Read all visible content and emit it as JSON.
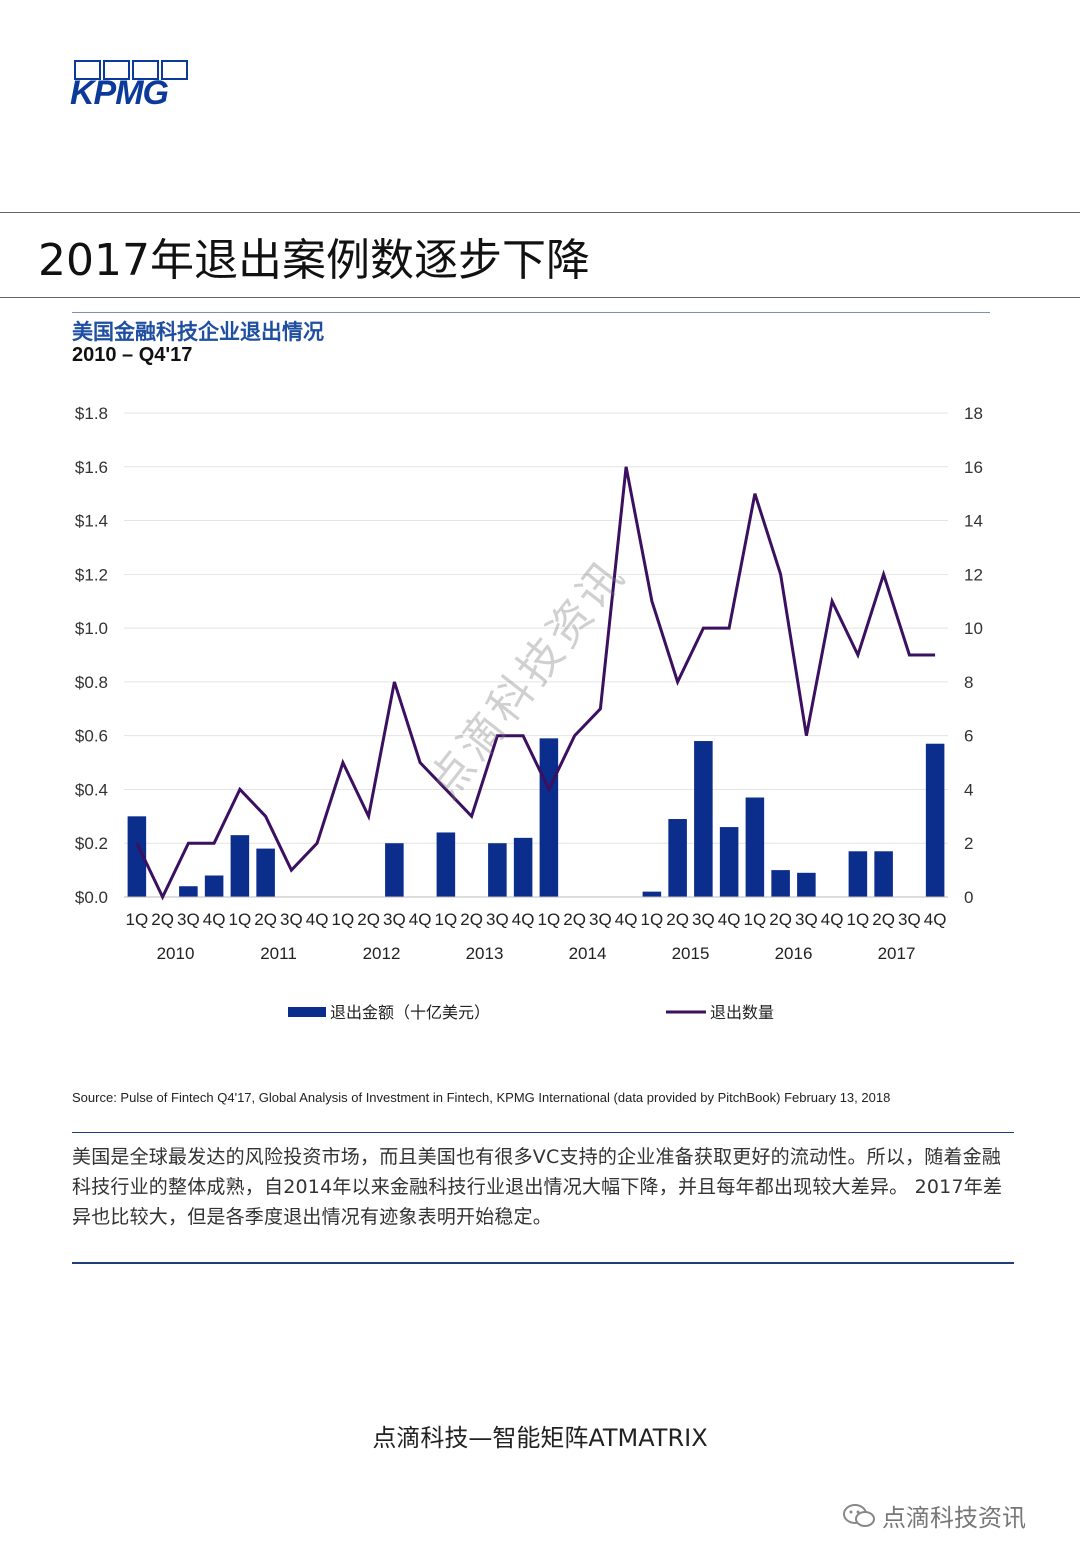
{
  "logo": {
    "text": "KPMG"
  },
  "page_title": "2017年退出案例数逐步下降",
  "chart_title": "美国金融科技企业退出情况",
  "chart_subtitle": "2010 – Q4'17",
  "watermark": "点滴科技资讯",
  "source": "Source: Pulse of Fintech Q4'17, Global Analysis of Investment in Fintech, KPMG International (data provided by PitchBook) February 13, 2018",
  "body_text": "美国是全球最发达的风险投资市场，而且美国也有很多VC支持的企业准备获取更好的流动性。所以，随着金融科技行业的整体成熟，自2014年以来金融科技行业退出情况大幅下降，并且每年都出现较大差异。 2017年差异也比较大，但是各季度退出情况有迹象表明开始稳定。",
  "footer": "点滴科技—智能矩阵ATMATRIX",
  "wechat_label": "点滴科技资讯",
  "colors": {
    "bar": "#0b2d8c",
    "line": "#3b1060",
    "grid": "#e4e4e4"
  },
  "chart_data": {
    "type": "bar+line",
    "title": "美国金融科技企业退出情况",
    "subtitle": "2010 – Q4'17",
    "quarters": [
      "1Q",
      "2Q",
      "3Q",
      "4Q"
    ],
    "years": [
      "2010",
      "2011",
      "2012",
      "2013",
      "2014",
      "2015",
      "2016",
      "2017"
    ],
    "left_ticks": [
      {
        "v": 0.0,
        "label": "$0.0"
      },
      {
        "v": 0.2,
        "label": "$0.2"
      },
      {
        "v": 0.4,
        "label": "$0.4"
      },
      {
        "v": 0.6,
        "label": "$0.6"
      },
      {
        "v": 0.8,
        "label": "$0.8"
      },
      {
        "v": 1.0,
        "label": "$1.0"
      },
      {
        "v": 1.2,
        "label": "$1.2"
      },
      {
        "v": 1.4,
        "label": "$1.4"
      },
      {
        "v": 1.6,
        "label": "$1.6"
      },
      {
        "v": 1.8,
        "label": "$1.8"
      }
    ],
    "right_ticks": [
      {
        "v": 0,
        "label": "0"
      },
      {
        "v": 2,
        "label": "2"
      },
      {
        "v": 4,
        "label": "4"
      },
      {
        "v": 6,
        "label": "6"
      },
      {
        "v": 8,
        "label": "8"
      },
      {
        "v": 10,
        "label": "10"
      },
      {
        "v": 12,
        "label": "12"
      },
      {
        "v": 14,
        "label": "14"
      },
      {
        "v": 16,
        "label": "16"
      },
      {
        "v": 18,
        "label": "18"
      }
    ],
    "series": [
      {
        "name": "退出金额（十亿美元）",
        "type": "bar",
        "axis": "left",
        "values": [
          0.3,
          0.0,
          0.04,
          0.08,
          0.23,
          0.18,
          0.0,
          0.0,
          0.0,
          0.0,
          0.2,
          0.0,
          0.24,
          0.0,
          0.2,
          0.22,
          0.59,
          0.0,
          0.0,
          0.0,
          0.02,
          0.29,
          0.58,
          0.26,
          0.37,
          0.1,
          0.09,
          0.0,
          0.17,
          0.17,
          0.0,
          0.57
        ]
      },
      {
        "name": "退出数量",
        "type": "line",
        "axis": "right",
        "values": [
          2,
          0,
          2,
          2,
          4,
          3,
          1,
          2,
          5,
          3,
          8,
          5,
          4,
          3,
          6,
          6,
          4,
          6,
          7,
          16,
          11,
          8,
          10,
          10,
          15,
          12,
          6,
          11,
          9,
          12,
          9,
          9
        ]
      }
    ]
  }
}
